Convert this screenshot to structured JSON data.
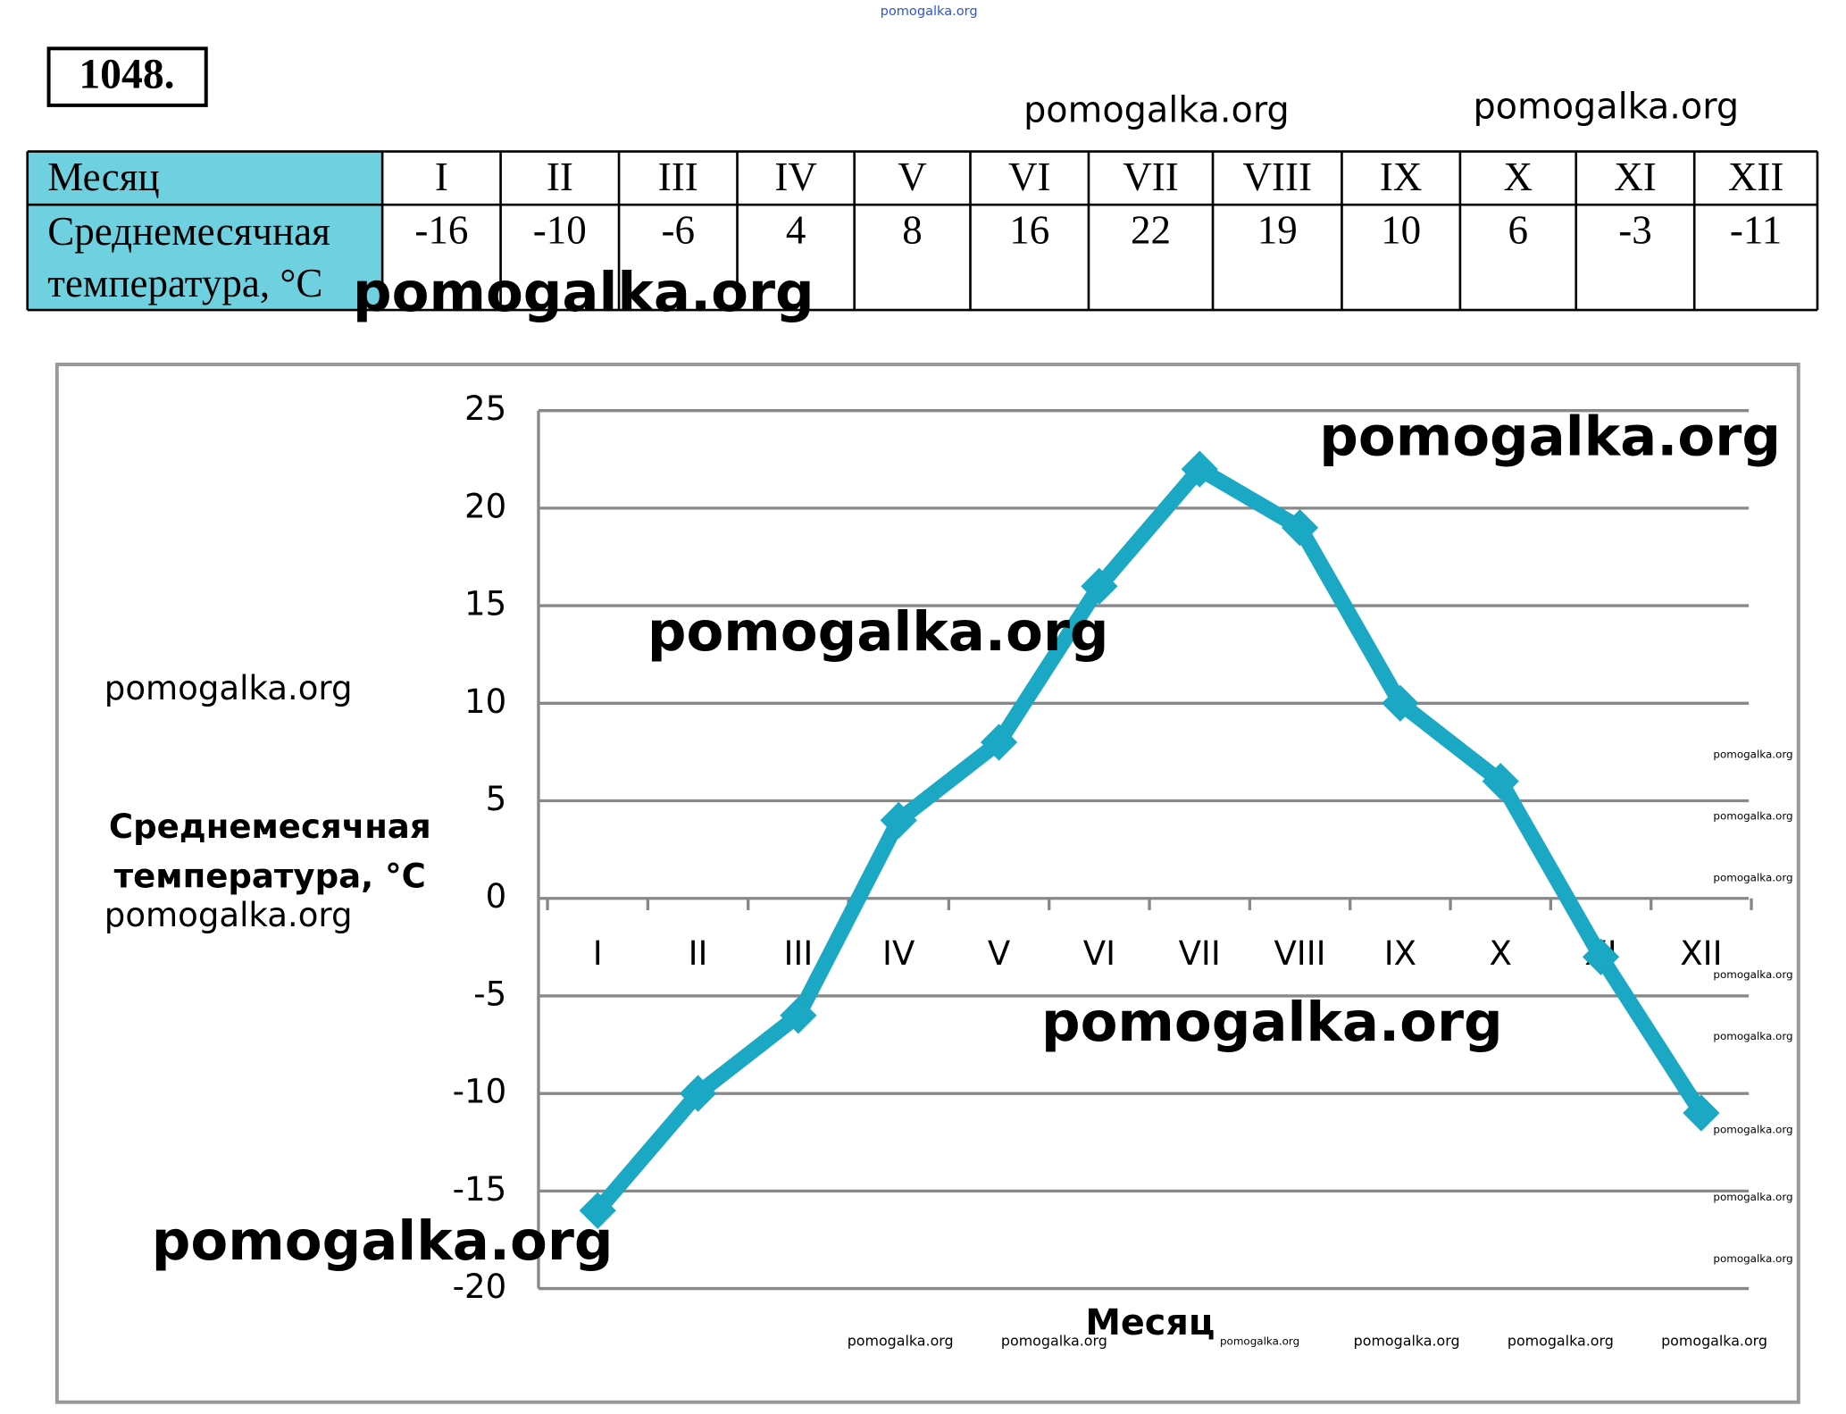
{
  "problem_number": "1048.",
  "table": {
    "header": [
      "Месяц",
      "I",
      "II",
      "III",
      "IV",
      "V",
      "VI",
      "VII",
      "VIII",
      "IX",
      "X",
      "XI",
      "XII"
    ],
    "row_label": [
      "Среднемесячная",
      "температура, °C"
    ],
    "row_values": [
      "-16",
      "-10",
      "-6",
      "4",
      "8",
      "16",
      "22",
      "19",
      "10",
      "6",
      "-3",
      "-11"
    ]
  },
  "chart_data": {
    "type": "line",
    "categories": [
      "I",
      "II",
      "III",
      "IV",
      "V",
      "VI",
      "VII",
      "VIII",
      "IX",
      "X",
      "XI",
      "XII"
    ],
    "values": [
      -16,
      -10,
      -6,
      4,
      8,
      16,
      22,
      19,
      10,
      6,
      -3,
      -11
    ],
    "color": "#1aa8c4",
    "ylim": [
      -20,
      25
    ],
    "yticks": [
      -20,
      -15,
      -10,
      -5,
      0,
      5,
      10,
      15,
      20,
      25
    ],
    "grid": true,
    "y_label": [
      "Среднемесячная",
      "температура, °C"
    ],
    "x_label": "Месяц"
  },
  "watermarks": [
    "pomogalka.org",
    "pomogalka.org",
    "pomogalka.org",
    "pomogalka.org",
    "pomogalka.org",
    "pomogalka.org",
    "pomogalka.org",
    "pomogalka.org",
    "pomogalka.org",
    "pomogalka.org",
    "pomogalka.org",
    "pomogalka.org",
    "pomogalka.org",
    "pomogalka.org",
    "pomogalka.org",
    "pomogalka.org",
    "pomogalka.org",
    "pomogalka.org",
    "pomogalka.org",
    "pomogalka.org",
    "pomogalka.org",
    "pomogalka.org",
    "pomogalka.org",
    "pomogalka.org"
  ]
}
